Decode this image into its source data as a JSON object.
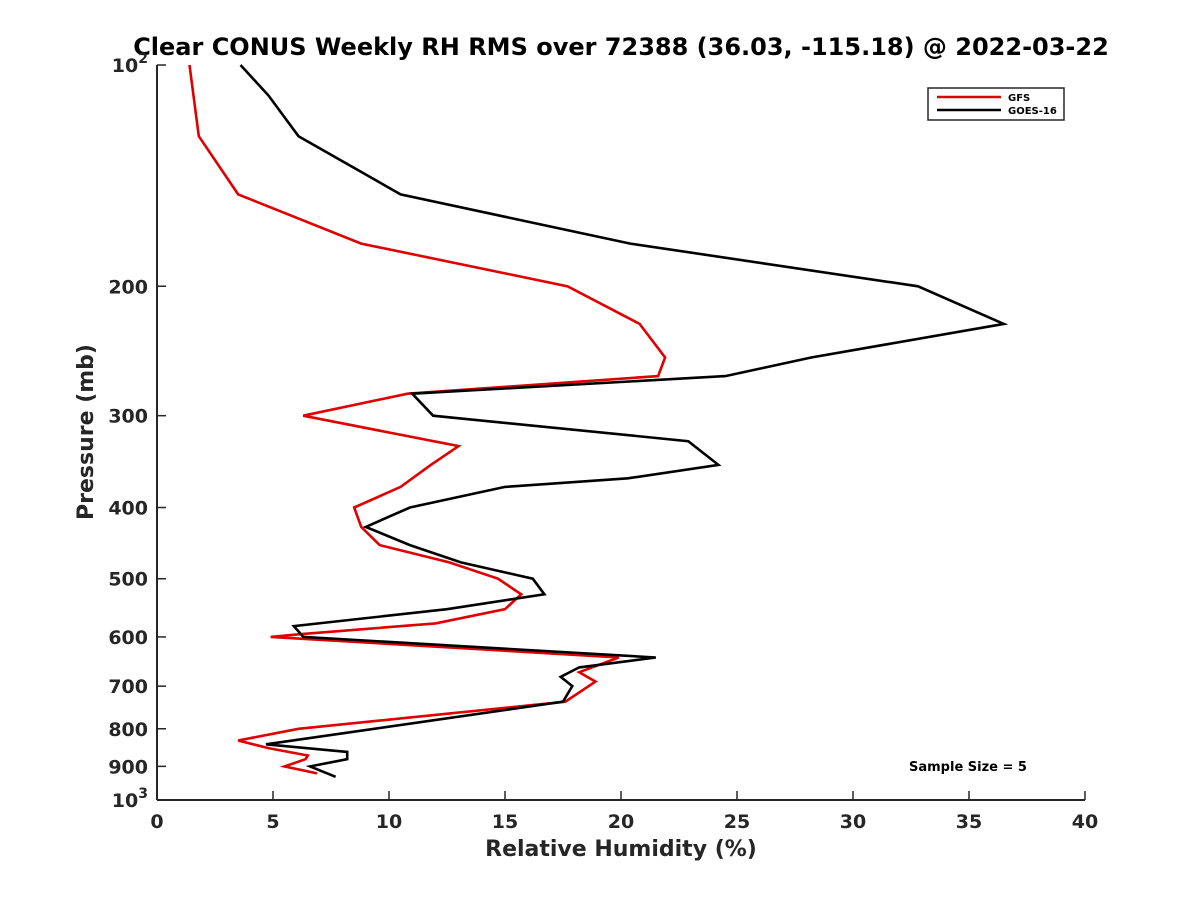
{
  "chart_data": {
    "type": "line",
    "title": "Clear CONUS Weekly RH RMS over 72388 (36.03, -115.18) @ 2022-03-22",
    "xlabel": "Relative Humidity (%)",
    "ylabel": "Pressure (mb)",
    "xlim": [
      0,
      40
    ],
    "ylim": [
      100,
      1000
    ],
    "y_scale": "log",
    "y_reversed": true,
    "grid": false,
    "legend_position": "top-right",
    "x_ticks": [
      "0",
      "5",
      "10",
      "15",
      "20",
      "25",
      "30",
      "35",
      "40"
    ],
    "y_ticks": [
      {
        "value": 100,
        "base": "10",
        "exp": "2"
      },
      {
        "value": 200,
        "label": "200"
      },
      {
        "value": 300,
        "label": "300"
      },
      {
        "value": 400,
        "label": "400"
      },
      {
        "value": 500,
        "label": "500"
      },
      {
        "value": 600,
        "label": "600"
      },
      {
        "value": 700,
        "label": "700"
      },
      {
        "value": 800,
        "label": "800"
      },
      {
        "value": 900,
        "label": "900"
      },
      {
        "value": 1000,
        "base": "10",
        "exp": "3"
      }
    ],
    "annotation": "Sample Size = 5",
    "series": [
      {
        "name": "GFS",
        "color": "#e00000",
        "points": [
          [
            1.4,
            100
          ],
          [
            1.8,
            125
          ],
          [
            3.5,
            150
          ],
          [
            8.8,
            175
          ],
          [
            17.7,
            200
          ],
          [
            20.8,
            225
          ],
          [
            21.9,
            250
          ],
          [
            21.6,
            265
          ],
          [
            10.8,
            280
          ],
          [
            6.3,
            300
          ],
          [
            13.0,
            330
          ],
          [
            11.8,
            350
          ],
          [
            10.5,
            375
          ],
          [
            8.5,
            400
          ],
          [
            8.8,
            425
          ],
          [
            9.6,
            450
          ],
          [
            12.6,
            475
          ],
          [
            14.7,
            500
          ],
          [
            15.7,
            525
          ],
          [
            15.0,
            550
          ],
          [
            12.0,
            575
          ],
          [
            6.1,
            595
          ],
          [
            4.9,
            600
          ],
          [
            19.9,
            640
          ],
          [
            18.2,
            670
          ],
          [
            18.9,
            690
          ],
          [
            17.6,
            735
          ],
          [
            6.1,
            800
          ],
          [
            3.5,
            830
          ],
          [
            4.8,
            850
          ],
          [
            6.5,
            870
          ],
          [
            6.4,
            880
          ],
          [
            5.5,
            900
          ],
          [
            6.9,
            920
          ]
        ]
      },
      {
        "name": "GOES-16",
        "color": "#000000",
        "points": [
          [
            3.6,
            100
          ],
          [
            4.8,
            110
          ],
          [
            6.1,
            125
          ],
          [
            10.5,
            150
          ],
          [
            20.4,
            175
          ],
          [
            32.8,
            200
          ],
          [
            36.5,
            225
          ],
          [
            28.2,
            250
          ],
          [
            24.5,
            265
          ],
          [
            11.0,
            280
          ],
          [
            11.9,
            300
          ],
          [
            22.9,
            325
          ],
          [
            24.2,
            350
          ],
          [
            20.3,
            365
          ],
          [
            15.0,
            375
          ],
          [
            10.9,
            400
          ],
          [
            9.0,
            425
          ],
          [
            10.9,
            450
          ],
          [
            13.1,
            475
          ],
          [
            16.2,
            500
          ],
          [
            16.7,
            525
          ],
          [
            12.5,
            550
          ],
          [
            5.9,
            580
          ],
          [
            6.3,
            600
          ],
          [
            21.5,
            640
          ],
          [
            18.2,
            660
          ],
          [
            17.4,
            680
          ],
          [
            17.9,
            700
          ],
          [
            17.5,
            735
          ],
          [
            4.7,
            840
          ],
          [
            8.2,
            860
          ],
          [
            8.2,
            880
          ],
          [
            6.6,
            900
          ],
          [
            7.7,
            930
          ]
        ]
      }
    ]
  }
}
